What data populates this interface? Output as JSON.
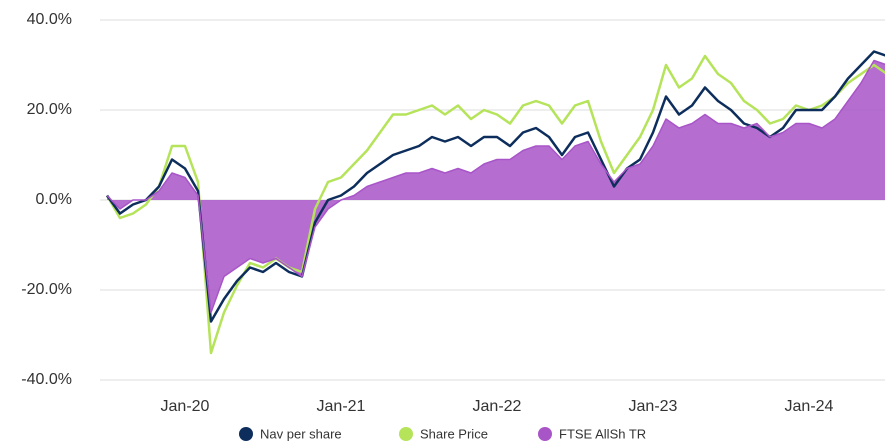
{
  "chart_data": {
    "type": "line",
    "x": [
      "Jul-19",
      "Aug-19",
      "Sep-19",
      "Oct-19",
      "Nov-19",
      "Dec-19",
      "Jan-20",
      "Feb-20",
      "Mar-20",
      "Apr-20",
      "May-20",
      "Jun-20",
      "Jul-20",
      "Aug-20",
      "Sep-20",
      "Oct-20",
      "Nov-20",
      "Dec-20",
      "Jan-21",
      "Feb-21",
      "Mar-21",
      "Apr-21",
      "May-21",
      "Jun-21",
      "Jul-21",
      "Aug-21",
      "Sep-21",
      "Oct-21",
      "Nov-21",
      "Dec-21",
      "Jan-22",
      "Feb-22",
      "Mar-22",
      "Apr-22",
      "May-22",
      "Jun-22",
      "Jul-22",
      "Aug-22",
      "Sep-22",
      "Oct-22",
      "Nov-22",
      "Dec-22",
      "Jan-23",
      "Feb-23",
      "Mar-23",
      "Apr-23",
      "May-23",
      "Jun-23",
      "Jul-23",
      "Aug-23",
      "Sep-23",
      "Oct-23",
      "Nov-23",
      "Dec-23",
      "Jan-24",
      "Feb-24",
      "Mar-24",
      "Apr-24",
      "May-24",
      "Jun-24",
      "Jul-24"
    ],
    "xticks": [
      "Jan-20",
      "Jan-21",
      "Jan-22",
      "Jan-23",
      "Jan-24"
    ],
    "series": [
      {
        "name": "Nav per share",
        "color": "#0d2e5c",
        "values": [
          1,
          -3,
          -1,
          0,
          3,
          9,
          7,
          2,
          -27,
          -22,
          -18,
          -15,
          -16,
          -14,
          -16,
          -17,
          -5,
          0,
          1,
          3,
          6,
          8,
          10,
          11,
          12,
          14,
          13,
          14,
          12,
          14,
          14,
          12,
          15,
          16,
          14,
          10,
          14,
          15,
          9,
          3,
          7,
          9,
          15,
          23,
          19,
          21,
          25,
          22,
          20,
          17,
          16,
          14,
          16,
          20,
          20,
          20,
          23,
          27,
          30,
          33,
          32
        ]
      },
      {
        "name": "Share Price",
        "color": "#b5e35a",
        "values": [
          1,
          -4,
          -3,
          -1,
          3,
          12,
          12,
          4,
          -34,
          -25,
          -19,
          -14,
          -15,
          -13,
          -15,
          -16,
          -2,
          4,
          5,
          8,
          11,
          15,
          19,
          19,
          20,
          21,
          19,
          21,
          18,
          20,
          19,
          17,
          21,
          22,
          21,
          17,
          21,
          22,
          13,
          6,
          10,
          14,
          20,
          30,
          25,
          27,
          32,
          28,
          26,
          22,
          20,
          17,
          18,
          21,
          20,
          21,
          23,
          26,
          28,
          30,
          28
        ]
      },
      {
        "name": "FTSE AllSh TR",
        "color": "#a855c8",
        "values": [
          1,
          -2,
          0,
          0,
          2,
          6,
          5,
          1,
          -25,
          -17,
          -15,
          -13,
          -14,
          -13,
          -15,
          -17,
          -6,
          -2,
          0,
          1,
          3,
          4,
          5,
          6,
          6,
          7,
          6,
          7,
          6,
          8,
          9,
          9,
          11,
          12,
          12,
          9,
          12,
          13,
          8,
          4,
          7,
          8,
          12,
          18,
          16,
          17,
          19,
          17,
          17,
          16,
          17,
          14,
          15,
          17,
          17,
          16,
          18,
          22,
          26,
          31,
          30
        ]
      }
    ],
    "ylim": [
      -40,
      40
    ],
    "yticks": [
      {
        "value": -40,
        "label": "-40.0%"
      },
      {
        "value": -20,
        "label": "-20.0%"
      },
      {
        "value": 0,
        "label": "0.0%"
      },
      {
        "value": 20,
        "label": "20.0%"
      },
      {
        "value": 40,
        "label": "40.0%"
      }
    ],
    "grid": true,
    "legend": "bottom"
  }
}
